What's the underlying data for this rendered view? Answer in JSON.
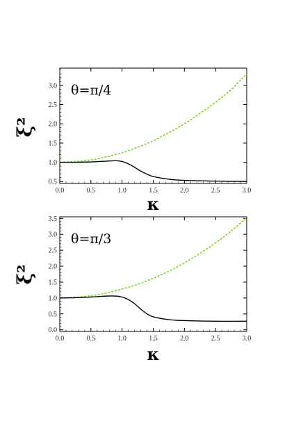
{
  "chart_data": [
    {
      "type": "line",
      "annotation": "θ=π/4",
      "xlabel": "κ",
      "ylabel": "ξ²",
      "xlim": [
        0,
        3.0
      ],
      "ylim": [
        0.45,
        3.45
      ],
      "x_ticks": [
        "0.0",
        "0.5",
        "1.0",
        "1.5",
        "2.0",
        "2.5",
        "3.0"
      ],
      "y_ticks": [
        "0.5",
        "1.0",
        "1.5",
        "2.0",
        "2.5",
        "3.0"
      ],
      "grid": false,
      "series": [
        {
          "color": "#7ed321",
          "style": "dashed",
          "x": [
            0,
            0.25,
            0.5,
            0.75,
            1.0,
            1.25,
            1.5,
            1.75,
            2.0,
            2.25,
            2.5,
            2.75,
            3.0
          ],
          "values": [
            1.0,
            1.02,
            1.06,
            1.14,
            1.25,
            1.39,
            1.56,
            1.77,
            2.0,
            2.27,
            2.56,
            2.89,
            3.3
          ]
        },
        {
          "color": "#000000",
          "style": "solid",
          "x": [
            0,
            0.25,
            0.5,
            0.75,
            0.9,
            1.0,
            1.1,
            1.2,
            1.3,
            1.4,
            1.5,
            1.75,
            2.0,
            2.5,
            3.0
          ],
          "values": [
            1.0,
            1.0,
            1.01,
            1.03,
            1.04,
            1.02,
            0.96,
            0.87,
            0.77,
            0.69,
            0.63,
            0.56,
            0.53,
            0.51,
            0.5
          ]
        }
      ]
    },
    {
      "type": "line",
      "annotation": "θ=π/3",
      "xlabel": "κ",
      "ylabel": "ξ²",
      "xlim": [
        0,
        3.0
      ],
      "ylim": [
        -0.05,
        3.55
      ],
      "x_ticks": [
        "0.0",
        "0.5",
        "1.0",
        "1.5",
        "2.0",
        "2.5",
        "3.0"
      ],
      "y_ticks": [
        "0.0",
        "0.5",
        "1.0",
        "1.5",
        "2.0",
        "2.5",
        "3.0",
        "3.5"
      ],
      "grid": false,
      "series": [
        {
          "color": "#7ed321",
          "style": "dashed",
          "x": [
            0,
            0.25,
            0.5,
            0.75,
            1.0,
            1.25,
            1.5,
            1.75,
            2.0,
            2.25,
            2.5,
            2.75,
            3.0
          ],
          "values": [
            1.0,
            1.02,
            1.07,
            1.16,
            1.28,
            1.43,
            1.62,
            1.84,
            2.1,
            2.4,
            2.73,
            3.1,
            3.52
          ]
        },
        {
          "color": "#000000",
          "style": "solid",
          "x": [
            0,
            0.25,
            0.5,
            0.75,
            0.9,
            1.0,
            1.1,
            1.2,
            1.3,
            1.4,
            1.5,
            1.75,
            2.0,
            2.5,
            3.0
          ],
          "values": [
            1.0,
            1.01,
            1.03,
            1.06,
            1.06,
            1.03,
            0.95,
            0.82,
            0.65,
            0.5,
            0.41,
            0.32,
            0.29,
            0.27,
            0.27
          ]
        }
      ]
    }
  ]
}
